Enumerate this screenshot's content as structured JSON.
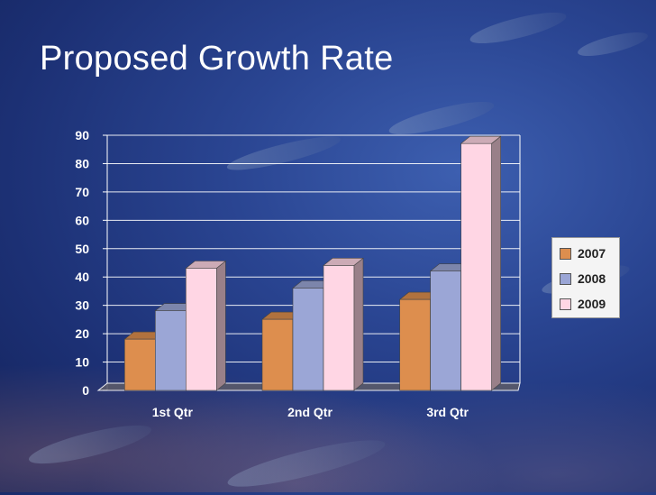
{
  "slide": {
    "title": "Proposed Growth Rate"
  },
  "chart_data": {
    "type": "bar",
    "title": "Proposed Growth Rate",
    "categories": [
      "1st Qtr",
      "2nd Qtr",
      "3rd Qtr"
    ],
    "series": [
      {
        "name": "2007",
        "values": [
          20,
          27,
          34
        ],
        "color": "#dd8e4e"
      },
      {
        "name": "2008",
        "values": [
          30,
          38,
          44
        ],
        "color": "#9ba6d6"
      },
      {
        "name": "2009",
        "values": [
          45,
          46,
          89
        ],
        "color": "#ffd6e4"
      }
    ],
    "yticks": [
      "0",
      "10",
      "20",
      "30",
      "40",
      "50",
      "60",
      "70",
      "80",
      "90"
    ],
    "ylim": [
      0,
      90
    ],
    "xlabel": "",
    "ylabel": "",
    "grid": true,
    "legend_position": "right"
  }
}
